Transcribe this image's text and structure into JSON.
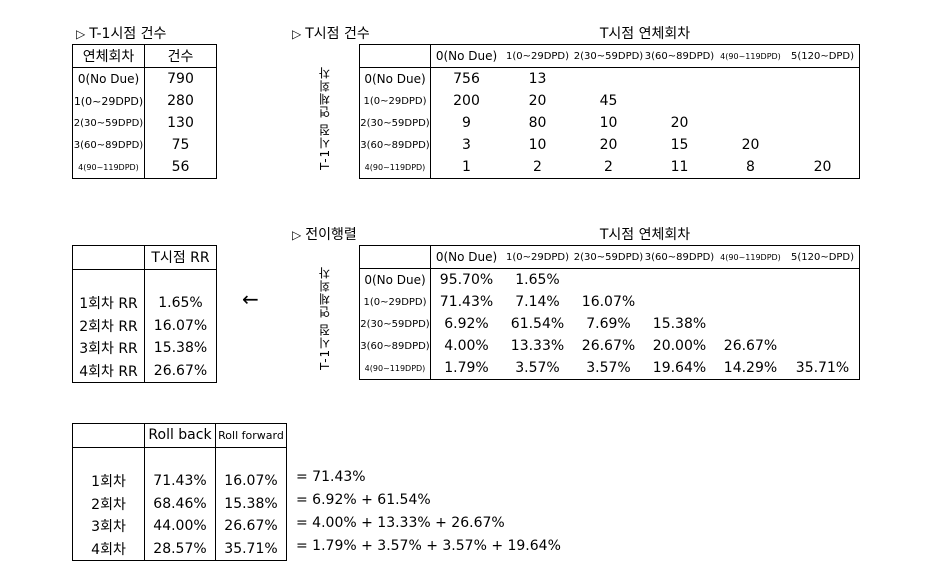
{
  "count_prev": {
    "title": "T-1시점 건수",
    "headers": [
      "연체회차",
      "건수"
    ],
    "rows": [
      {
        "label": "0(No Due)",
        "value": "790"
      },
      {
        "label": "1(0~29DPD)",
        "value": "280"
      },
      {
        "label": "2(30~59DPD)",
        "value": "130"
      },
      {
        "label": "3(60~89DPD)",
        "value": "75"
      },
      {
        "label": "4(90~119DPD)",
        "value": "56"
      }
    ]
  },
  "count_matrix": {
    "title": "T시점 건수",
    "col_group_label": "T시점 연체회차",
    "row_group_label": "T-1시점 연체회차",
    "columns": [
      "0(No Due)",
      "1(0~29DPD)",
      "2(30~59DPD)",
      "3(60~89DPD)",
      "4(90~119DPD)",
      "5(120~DPD)"
    ],
    "rows": [
      {
        "label": "0(No Due)",
        "values": [
          "756",
          "13",
          "",
          "",
          "",
          ""
        ]
      },
      {
        "label": "1(0~29DPD)",
        "values": [
          "200",
          "20",
          "45",
          "",
          "",
          ""
        ]
      },
      {
        "label": "2(30~59DPD)",
        "values": [
          "9",
          "80",
          "10",
          "20",
          "",
          ""
        ]
      },
      {
        "label": "3(60~89DPD)",
        "values": [
          "3",
          "10",
          "20",
          "15",
          "20",
          ""
        ]
      },
      {
        "label": "4(90~119DPD)",
        "values": [
          "1",
          "2",
          "2",
          "11",
          "8",
          "20"
        ]
      }
    ]
  },
  "transition_matrix": {
    "title": "전이행렬",
    "col_group_label": "T시점 연체회차",
    "row_group_label": "T-1시점 연체회차",
    "columns": [
      "0(No Due)",
      "1(0~29DPD)",
      "2(30~59DPD)",
      "3(60~89DPD)",
      "4(90~119DPD)",
      "5(120~DPD)"
    ],
    "rows": [
      {
        "label": "0(No Due)",
        "values": [
          "95.70%",
          "1.65%",
          "",
          "",
          "",
          ""
        ]
      },
      {
        "label": "1(0~29DPD)",
        "values": [
          "71.43%",
          "7.14%",
          "16.07%",
          "",
          "",
          ""
        ]
      },
      {
        "label": "2(30~59DPD)",
        "values": [
          "6.92%",
          "61.54%",
          "7.69%",
          "15.38%",
          "",
          ""
        ]
      },
      {
        "label": "3(60~89DPD)",
        "values": [
          "4.00%",
          "13.33%",
          "26.67%",
          "20.00%",
          "26.67%",
          ""
        ]
      },
      {
        "label": "4(90~119DPD)",
        "values": [
          "1.79%",
          "3.57%",
          "3.57%",
          "19.64%",
          "14.29%",
          "35.71%"
        ]
      }
    ]
  },
  "rr_table": {
    "header": "T시점 RR",
    "rows": [
      {
        "label": "1회차 RR",
        "value": "1.65%"
      },
      {
        "label": "2회차 RR",
        "value": "16.07%"
      },
      {
        "label": "3회차 RR",
        "value": "15.38%"
      },
      {
        "label": "4회차 RR",
        "value": "26.67%"
      }
    ],
    "arrow": "←"
  },
  "roll_table": {
    "headers": [
      "Roll back",
      "Roll forward"
    ],
    "rows": [
      {
        "label": "1회차",
        "back": "71.43%",
        "forward": "16.07%",
        "formula": "= 71.43%"
      },
      {
        "label": "2회차",
        "back": "68.46%",
        "forward": "15.38%",
        "formula": "= 6.92% + 61.54%"
      },
      {
        "label": "3회차",
        "back": "44.00%",
        "forward": "26.67%",
        "formula": "= 4.00% + 13.33% + 26.67%"
      },
      {
        "label": "4회차",
        "back": "28.57%",
        "forward": "35.71%",
        "formula": "= 1.79% + 3.57% + 3.57% + 19.64%"
      }
    ]
  },
  "icons": {
    "title_marker": "triangle-right-outline"
  }
}
